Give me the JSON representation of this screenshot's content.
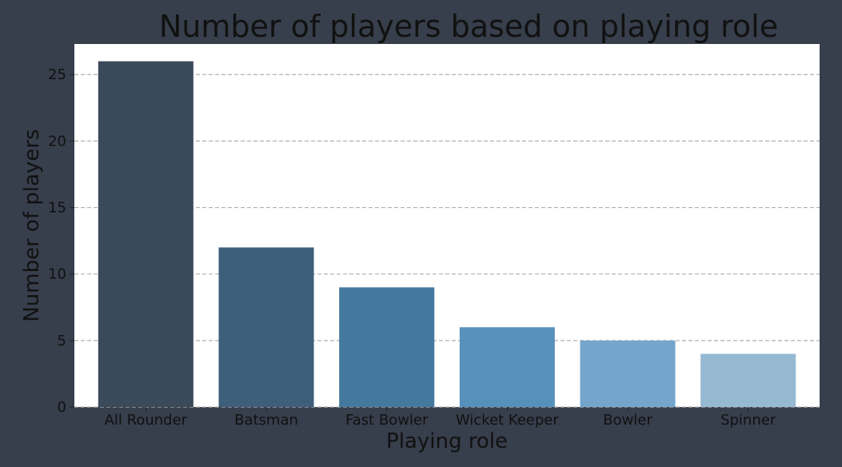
{
  "chart_data": {
    "type": "bar",
    "title": "Number of players based on playing role",
    "xlabel": "Playing role",
    "ylabel": "Number of players",
    "categories": [
      "All Rounder",
      "Batsman",
      "Fast Bowler",
      "Wicket Keeper",
      "Bowler",
      "Spinner"
    ],
    "values": [
      26,
      12,
      9,
      6,
      5,
      4
    ],
    "bar_colors": [
      "#3a4a5a",
      "#3e5f7a",
      "#44799e",
      "#5791bb",
      "#74a6cc",
      "#96b9d2"
    ],
    "yticks": [
      0,
      5,
      10,
      15,
      20,
      25
    ],
    "ylim": [
      0,
      27.3
    ],
    "grid": "horizontal-dashed",
    "legend": "none",
    "background": "#373e4c",
    "plot_background": "#ffffff",
    "grid_color": "#b0b0b0"
  }
}
